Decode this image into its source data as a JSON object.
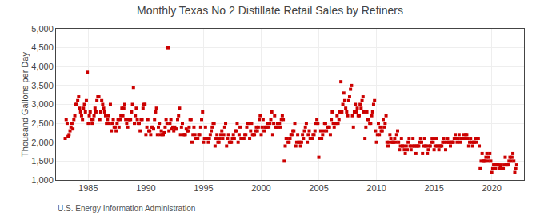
{
  "chart_data": {
    "type": "scatter",
    "title": "Monthly Texas No 2 Distillate Retail Sales by Refiners",
    "y_label": "Thousand Gallons per Day",
    "annotations": [
      "U.S. Energy Information Administration"
    ],
    "color": "#cc0000",
    "marker": "square",
    "grid": true,
    "xlim": [
      1982.2,
      2022.8
    ],
    "xticks": [
      1985,
      1990,
      1995,
      2000,
      2005,
      2010,
      2015,
      2020
    ],
    "ylim": [
      1000,
      5000
    ],
    "yticks": [
      {
        "value": 1000,
        "label": "1,000"
      },
      {
        "value": 1500,
        "label": "1,500"
      },
      {
        "value": 2000,
        "label": "2,000"
      },
      {
        "value": 2500,
        "label": "2,500"
      },
      {
        "value": 3000,
        "label": "3,000"
      },
      {
        "value": 3500,
        "label": "3,500"
      },
      {
        "value": 4000,
        "label": "4,000"
      },
      {
        "value": 4500,
        "label": "4,500"
      },
      {
        "value": 5000,
        "label": "5,000"
      }
    ],
    "x": [
      1983,
      1983.0833333333333,
      1983.1666666666667,
      1983.25,
      1983.3333333333333,
      1983.4166666666667,
      1983.5,
      1983.5833333333333,
      1983.6666666666667,
      1983.75,
      1983.8333333333333,
      1983.9166666666667,
      1984,
      1984.0833333333333,
      1984.1666666666667,
      1984.25,
      1984.3333333333333,
      1984.4166666666667,
      1984.5,
      1984.5833333333333,
      1984.6666666666667,
      1984.75,
      1984.8333333333333,
      1984.9166666666667,
      1985,
      1985.0833333333333,
      1985.1666666666667,
      1985.25,
      1985.3333333333333,
      1985.4166666666667,
      1985.5,
      1985.5833333333333,
      1985.6666666666667,
      1985.75,
      1985.8333333333333,
      1985.9166666666667,
      1986,
      1986.0833333333333,
      1986.1666666666667,
      1986.25,
      1986.3333333333333,
      1986.4166666666667,
      1986.5,
      1986.5833333333333,
      1986.6666666666667,
      1986.75,
      1986.8333333333333,
      1986.9166666666667,
      1987,
      1987.0833333333333,
      1987.1666666666667,
      1987.25,
      1987.3333333333333,
      1987.4166666666667,
      1987.5,
      1987.5833333333333,
      1987.6666666666667,
      1987.75,
      1987.8333333333333,
      1987.9166666666667,
      1988,
      1988.0833333333333,
      1988.1666666666667,
      1988.25,
      1988.3333333333333,
      1988.4166666666667,
      1988.5,
      1988.5833333333333,
      1988.6666666666667,
      1988.75,
      1988.8333333333333,
      1988.9166666666667,
      1989,
      1989.0833333333333,
      1989.1666666666667,
      1989.25,
      1989.3333333333333,
      1989.4166666666667,
      1989.5,
      1989.5833333333333,
      1989.6666666666667,
      1989.75,
      1989.8333333333333,
      1989.9166666666667,
      1990,
      1990.0833333333333,
      1990.1666666666667,
      1990.25,
      1990.3333333333333,
      1990.4166666666667,
      1990.5,
      1990.5833333333333,
      1990.6666666666667,
      1990.75,
      1990.8333333333333,
      1990.9166666666667,
      1991,
      1991.0833333333333,
      1991.1666666666667,
      1991.25,
      1991.3333333333333,
      1991.4166666666667,
      1991.5,
      1991.5833333333333,
      1991.6666666666667,
      1991.75,
      1991.8333333333333,
      1991.9166666666667,
      1992,
      1992.0833333333333,
      1992.1666666666667,
      1992.25,
      1992.3333333333333,
      1992.4166666666667,
      1992.5,
      1992.5833333333333,
      1992.6666666666667,
      1992.75,
      1992.8333333333333,
      1992.9166666666667,
      1993,
      1993.0833333333333,
      1993.1666666666667,
      1993.25,
      1993.3333333333333,
      1993.4166666666667,
      1993.5,
      1993.5833333333333,
      1993.6666666666667,
      1993.75,
      1993.8333333333333,
      1993.9166666666667,
      1994,
      1994.0833333333333,
      1994.1666666666667,
      1994.25,
      1994.3333333333333,
      1994.4166666666667,
      1994.5,
      1994.5833333333333,
      1994.6666666666667,
      1994.75,
      1994.8333333333333,
      1994.9166666666667,
      1995,
      1995.0833333333333,
      1995.1666666666667,
      1995.25,
      1995.3333333333333,
      1995.4166666666667,
      1995.5,
      1995.5833333333333,
      1995.6666666666667,
      1995.75,
      1995.8333333333333,
      1995.9166666666667,
      1996,
      1996.0833333333333,
      1996.1666666666667,
      1996.25,
      1996.3333333333333,
      1996.4166666666667,
      1996.5,
      1996.5833333333333,
      1996.6666666666667,
      1996.75,
      1996.8333333333333,
      1996.9166666666667,
      1997,
      1997.0833333333333,
      1997.1666666666667,
      1997.25,
      1997.3333333333333,
      1997.4166666666667,
      1997.5,
      1997.5833333333333,
      1997.6666666666667,
      1997.75,
      1997.8333333333333,
      1997.9166666666667,
      1998,
      1998.0833333333333,
      1998.1666666666667,
      1998.25,
      1998.3333333333333,
      1998.4166666666667,
      1998.5,
      1998.5833333333333,
      1998.6666666666667,
      1998.75,
      1998.8333333333333,
      1998.9166666666667,
      1999,
      1999.0833333333333,
      1999.1666666666667,
      1999.25,
      1999.3333333333333,
      1999.4166666666667,
      1999.5,
      1999.5833333333333,
      1999.6666666666667,
      1999.75,
      1999.8333333333333,
      1999.9166666666667,
      2000,
      2000.0833333333333,
      2000.1666666666667,
      2000.25,
      2000.3333333333333,
      2000.4166666666667,
      2000.5,
      2000.5833333333333,
      2000.6666666666667,
      2000.75,
      2000.8333333333333,
      2000.9166666666667,
      2001,
      2001.0833333333333,
      2001.1666666666667,
      2001.25,
      2001.3333333333333,
      2001.4166666666667,
      2001.5,
      2001.5833333333333,
      2001.6666666666667,
      2001.75,
      2001.8333333333333,
      2001.9166666666667,
      2002,
      2002.0833333333333,
      2002.1666666666667,
      2002.25,
      2002.3333333333333,
      2002.4166666666667,
      2002.5,
      2002.5833333333333,
      2002.6666666666667,
      2002.75,
      2002.8333333333333,
      2002.9166666666667,
      2003,
      2003.0833333333333,
      2003.1666666666667,
      2003.25,
      2003.3333333333333,
      2003.4166666666667,
      2003.5,
      2003.5833333333333,
      2003.6666666666667,
      2003.75,
      2003.8333333333333,
      2003.9166666666667,
      2004,
      2004.0833333333333,
      2004.1666666666667,
      2004.25,
      2004.3333333333333,
      2004.4166666666667,
      2004.5,
      2004.5833333333333,
      2004.6666666666667,
      2004.75,
      2004.8333333333333,
      2004.9166666666667,
      2005,
      2005.0833333333333,
      2005.1666666666667,
      2005.25,
      2005.3333333333333,
      2005.4166666666667,
      2005.5,
      2005.5833333333333,
      2005.6666666666667,
      2005.75,
      2005.8333333333333,
      2005.9166666666667,
      2006,
      2006.0833333333333,
      2006.1666666666667,
      2006.25,
      2006.3333333333333,
      2006.4166666666667,
      2006.5,
      2006.5833333333333,
      2006.6666666666667,
      2006.75,
      2006.8333333333333,
      2006.9166666666667,
      2007,
      2007.0833333333333,
      2007.1666666666667,
      2007.25,
      2007.3333333333333,
      2007.4166666666667,
      2007.5,
      2007.5833333333333,
      2007.6666666666667,
      2007.75,
      2007.8333333333333,
      2007.9166666666667,
      2008,
      2008.0833333333333,
      2008.1666666666667,
      2008.25,
      2008.3333333333333,
      2008.4166666666667,
      2008.5,
      2008.5833333333333,
      2008.6666666666667,
      2008.75,
      2008.8333333333333,
      2008.9166666666667,
      2009,
      2009.0833333333333,
      2009.1666666666667,
      2009.25,
      2009.3333333333333,
      2009.4166666666667,
      2009.5,
      2009.5833333333333,
      2009.6666666666667,
      2009.75,
      2009.8333333333333,
      2009.9166666666667,
      2010,
      2010.0833333333333,
      2010.1666666666667,
      2010.25,
      2010.3333333333333,
      2010.4166666666667,
      2010.5,
      2010.5833333333333,
      2010.6666666666667,
      2010.75,
      2010.8333333333333,
      2010.9166666666667,
      2011,
      2011.0833333333333,
      2011.1666666666667,
      2011.25,
      2011.3333333333333,
      2011.4166666666667,
      2011.5,
      2011.5833333333333,
      2011.6666666666667,
      2011.75,
      2011.8333333333333,
      2011.9166666666667,
      2012,
      2012.0833333333333,
      2012.1666666666667,
      2012.25,
      2012.3333333333333,
      2012.4166666666667,
      2012.5,
      2012.5833333333333,
      2012.6666666666667,
      2012.75,
      2012.8333333333333,
      2012.9166666666667,
      2013,
      2013.0833333333333,
      2013.1666666666667,
      2013.25,
      2013.3333333333333,
      2013.4166666666667,
      2013.5,
      2013.5833333333333,
      2013.6666666666667,
      2013.75,
      2013.8333333333333,
      2013.9166666666667,
      2014,
      2014.0833333333333,
      2014.1666666666667,
      2014.25,
      2014.3333333333333,
      2014.4166666666667,
      2014.5,
      2014.5833333333333,
      2014.6666666666667,
      2014.75,
      2014.8333333333333,
      2014.9166666666667,
      2015,
      2015.0833333333333,
      2015.1666666666667,
      2015.25,
      2015.3333333333333,
      2015.4166666666667,
      2015.5,
      2015.5833333333333,
      2015.6666666666667,
      2015.75,
      2015.8333333333333,
      2015.9166666666667,
      2016,
      2016.0833333333333,
      2016.1666666666667,
      2016.25,
      2016.3333333333333,
      2016.4166666666667,
      2016.5,
      2016.5833333333333,
      2016.6666666666667,
      2016.75,
      2016.8333333333333,
      2016.9166666666667,
      2017,
      2017.0833333333333,
      2017.1666666666667,
      2017.25,
      2017.3333333333333,
      2017.4166666666667,
      2017.5,
      2017.5833333333333,
      2017.6666666666667,
      2017.75,
      2017.8333333333333,
      2017.9166666666667,
      2018,
      2018.0833333333333,
      2018.1666666666667,
      2018.25,
      2018.3333333333333,
      2018.4166666666667,
      2018.5,
      2018.5833333333333,
      2018.6666666666667,
      2018.75,
      2018.8333333333333,
      2018.9166666666667,
      2019,
      2019.0833333333333,
      2019.1666666666667,
      2019.25,
      2019.3333333333333,
      2019.4166666666667,
      2019.5,
      2019.5833333333333,
      2019.6666666666667,
      2019.75,
      2019.8333333333333,
      2019.9166666666667,
      2020,
      2020.0833333333333,
      2020.1666666666667,
      2020.25,
      2020.3333333333333,
      2020.4166666666667,
      2020.5,
      2020.5833333333333,
      2020.6666666666667,
      2020.75,
      2020.8333333333333,
      2020.9166666666667,
      2021,
      2021.0833333333333,
      2021.1666666666667,
      2021.25,
      2021.3333333333333,
      2021.4166666666667,
      2021.5,
      2021.5833333333333,
      2021.6666666666667,
      2021.75,
      2021.8333333333333,
      2021.9166666666667,
      2022,
      2022.0833333333333,
      2022.1666666666667
    ],
    "values": [
      2100,
      2600,
      2500,
      2150,
      2200,
      2300,
      2400,
      2500,
      2350,
      2600,
      2700,
      3000,
      3000,
      3100,
      3200,
      2900,
      2800,
      2700,
      2600,
      2900,
      3000,
      2800,
      3100,
      3850,
      2500,
      2700,
      2800,
      2600,
      2500,
      2600,
      2700,
      2900,
      2800,
      3100,
      3200,
      3200,
      2600,
      2800,
      3100,
      3000,
      2900,
      2800,
      2700,
      2500,
      2600,
      2700,
      2500,
      3000,
      2300,
      2500,
      2600,
      2400,
      2400,
      2300,
      2500,
      2600,
      2400,
      2600,
      2700,
      2900,
      2700,
      2900,
      3000,
      2600,
      2500,
      2400,
      2600,
      2600,
      2600,
      2800,
      3000,
      3450,
      2500,
      2700,
      2900,
      2600,
      2500,
      2500,
      2300,
      2600,
      2600,
      2900,
      3000,
      3000,
      2200,
      2400,
      2600,
      2300,
      2300,
      2200,
      2400,
      2400,
      2350,
      2600,
      2800,
      2900,
      2200,
      2400,
      2500,
      2200,
      2300,
      2200,
      2200,
      2250,
      2400,
      2600,
      2500,
      4500,
      2300,
      2500,
      2600,
      2350,
      2400,
      2300,
      2400,
      2350,
      2350,
      2600,
      2700,
      2900,
      2200,
      2400,
      2500,
      2200,
      2200,
      2200,
      2350,
      2300,
      2300,
      2400,
      2600,
      2600,
      2000,
      2200,
      2400,
      2200,
      2100,
      2100,
      2100,
      2200,
      2200,
      2400,
      2600,
      2800,
      2000,
      2100,
      2400,
      2100,
      2100,
      2000,
      2100,
      2200,
      2300,
      2400,
      2500,
      2500,
      1900,
      2100,
      2200,
      2000,
      2000,
      2100,
      2200,
      2300,
      2100,
      2200,
      2400,
      2500,
      1900,
      2100,
      2200,
      2000,
      2000,
      2000,
      2100,
      2200,
      2100,
      2300,
      2300,
      2500,
      2000,
      2200,
      2400,
      2100,
      2100,
      2100,
      2100,
      2200,
      2200,
      2400,
      2500,
      2500,
      2100,
      2300,
      2500,
      2200,
      2200,
      2200,
      2300,
      2400,
      2300,
      2400,
      2600,
      2700,
      2200,
      2400,
      2600,
      2300,
      2400,
      2400,
      2400,
      2500,
      2400,
      2500,
      2600,
      2800,
      2200,
      2500,
      2700,
      2400,
      2400,
      2500,
      2400,
      2500,
      2400,
      2600,
      2700,
      2600,
      1500,
      1900,
      2100,
      2100,
      2000,
      2000,
      2100,
      2200,
      2200,
      2300,
      2300,
      2500,
      1900,
      2000,
      2200,
      2000,
      2000,
      1900,
      2000,
      2200,
      2100,
      2300,
      2400,
      2500,
      2000,
      2200,
      2300,
      2100,
      2100,
      2100,
      2200,
      2200,
      2300,
      2500,
      2600,
      2500,
      1600,
      2100,
      2300,
      2100,
      2200,
      2300,
      2500,
      2500,
      2300,
      2400,
      2400,
      2400,
      2200,
      2600,
      2800,
      2500,
      2400,
      2500,
      2500,
      2700,
      2500,
      2600,
      2800,
      3600,
      2800,
      3000,
      3300,
      3100,
      2900,
      2800,
      2700,
      3100,
      3200,
      3400,
      3500,
      2700,
      2400,
      2800,
      3000,
      2800,
      2900,
      2700,
      2700,
      3000,
      2900,
      3100,
      3200,
      2800,
      2100,
      2400,
      2800,
      2600,
      2600,
      2500,
      2500,
      2700,
      2800,
      3000,
      3100,
      2300,
      2000,
      2200,
      2500,
      2200,
      2400,
      2300,
      2300,
      2600,
      2400,
      2500,
      2700,
      2000,
      1900,
      2000,
      2200,
      2100,
      2000,
      2000,
      2000,
      2100,
      2000,
      2200,
      2300,
      2000,
      1800,
      1900,
      2100,
      1900,
      1900,
      1800,
      1700,
      1900,
      1800,
      2000,
      2100,
      1900,
      1800,
      1900,
      2100,
      1900,
      1900,
      1700,
      1900,
      1900,
      1900,
      2000,
      2100,
      2000,
      1700,
      1900,
      2100,
      1900,
      1900,
      1700,
      1800,
      1900,
      1900,
      2000,
      2100,
      2000,
      1800,
      1900,
      2100,
      1900,
      1900,
      1800,
      1900,
      1900,
      1900,
      2000,
      2100,
      2000,
      1800,
      2000,
      2100,
      2000,
      2000,
      1900,
      2000,
      2000,
      2000,
      2100,
      2200,
      2100,
      2000,
      2100,
      2200,
      2000,
      2100,
      2100,
      2100,
      2200,
      2100,
      2200,
      2200,
      2100,
      1900,
      2000,
      2100,
      2000,
      1900,
      2000,
      2000,
      2100,
      2000,
      2100,
      2100,
      1900,
      1300,
      1500,
      1700,
      1500,
      1500,
      1500,
      1600,
      1700,
      1500,
      1600,
      1700,
      1500,
      1200,
      1300,
      1400,
      1400,
      1300,
      1400,
      1400,
      1400,
      1300,
      1350,
      1400,
      1300,
      1300,
      1400,
      1600,
      1400,
      1400,
      1400,
      1500,
      1600,
      1500,
      1600,
      1700,
      1500,
      1200,
      1300,
      1400
    ]
  }
}
